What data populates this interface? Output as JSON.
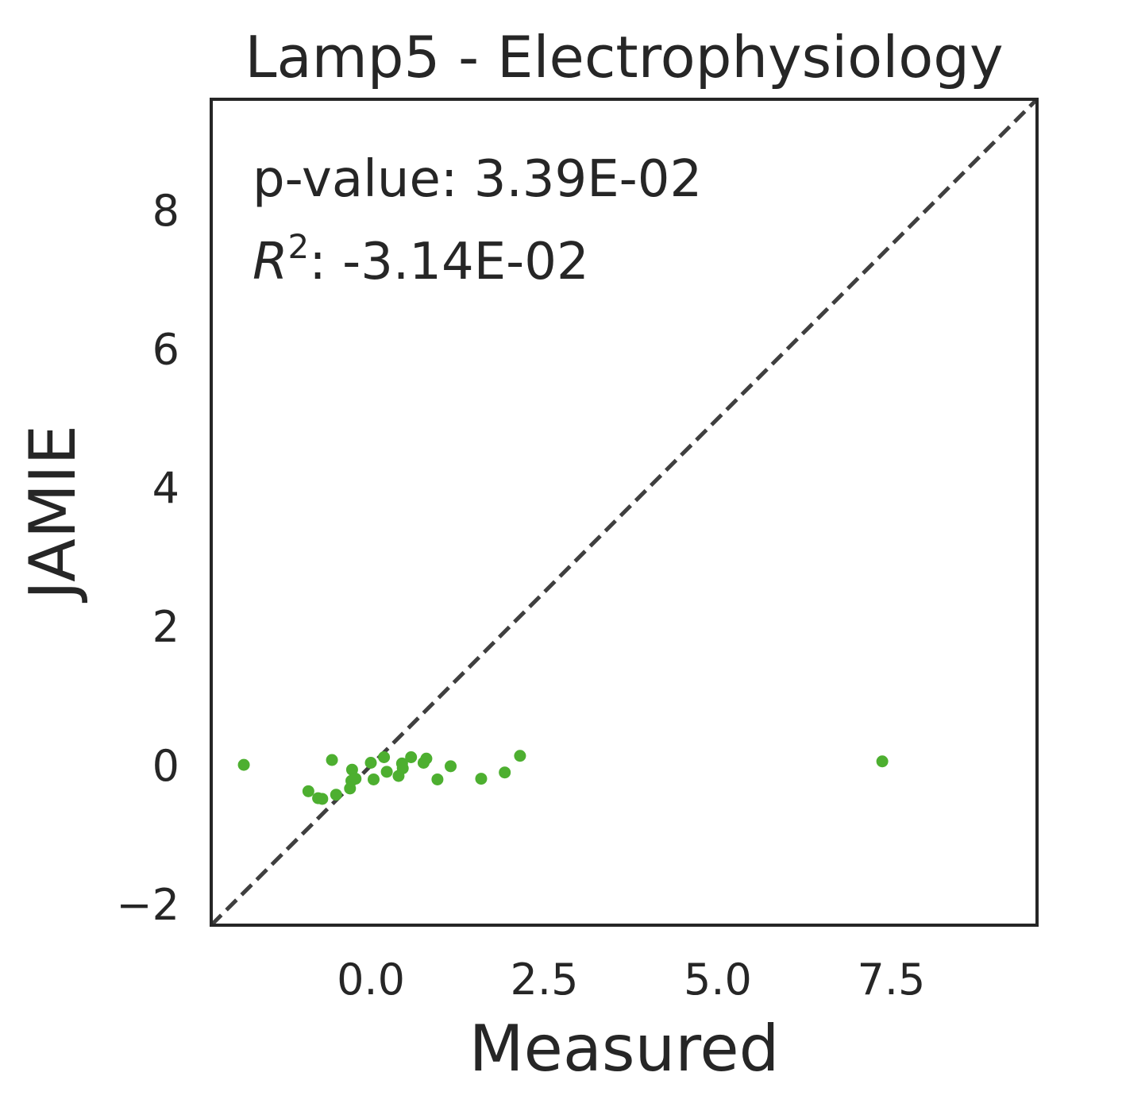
{
  "chart_data": {
    "type": "scatter",
    "title": "Lamp5 - Electrophysiology",
    "xlabel": "Measured",
    "ylabel": "JAMIE",
    "xlim": [
      -2.3,
      9.6
    ],
    "ylim": [
      -2.3,
      9.6
    ],
    "xticks": [
      {
        "value": 0.0,
        "label": "0.0"
      },
      {
        "value": 2.5,
        "label": "2.5"
      },
      {
        "value": 5.0,
        "label": "5.0"
      },
      {
        "value": 7.5,
        "label": "7.5"
      }
    ],
    "yticks": [
      {
        "value": -2,
        "label": "−2"
      },
      {
        "value": 0,
        "label": "0"
      },
      {
        "value": 2,
        "label": "2"
      },
      {
        "value": 4,
        "label": "4"
      },
      {
        "value": 6,
        "label": "6"
      },
      {
        "value": 8,
        "label": "8"
      }
    ],
    "grid": false,
    "reference_line": {
      "style": "dashed",
      "from": [
        -2.3,
        -2.3
      ],
      "to": [
        9.6,
        9.6
      ],
      "color": "#3f3f3f"
    },
    "annotations": {
      "pvalue_label": "p-value: ",
      "pvalue_value": "3.39E-02",
      "r2_symbol": "R",
      "r2_exponent": "2",
      "r2_value": ": -3.14E-02"
    },
    "point_color": "#4daf30",
    "points": [
      {
        "x": -1.83,
        "y": 0.01
      },
      {
        "x": -0.9,
        "y": -0.37
      },
      {
        "x": -0.76,
        "y": -0.47
      },
      {
        "x": -0.7,
        "y": -0.48
      },
      {
        "x": -0.56,
        "y": 0.08
      },
      {
        "x": -0.5,
        "y": -0.42
      },
      {
        "x": -0.3,
        "y": -0.33
      },
      {
        "x": -0.28,
        "y": -0.22
      },
      {
        "x": -0.27,
        "y": -0.06
      },
      {
        "x": -0.22,
        "y": -0.19
      },
      {
        "x": 0.0,
        "y": 0.04
      },
      {
        "x": 0.04,
        "y": -0.2
      },
      {
        "x": 0.19,
        "y": 0.12
      },
      {
        "x": 0.23,
        "y": -0.09
      },
      {
        "x": 0.4,
        "y": -0.15
      },
      {
        "x": 0.45,
        "y": 0.03
      },
      {
        "x": 0.46,
        "y": -0.04
      },
      {
        "x": 0.58,
        "y": 0.12
      },
      {
        "x": 0.76,
        "y": 0.04
      },
      {
        "x": 0.8,
        "y": 0.1
      },
      {
        "x": 0.96,
        "y": -0.2
      },
      {
        "x": 1.15,
        "y": -0.01
      },
      {
        "x": 1.59,
        "y": -0.19
      },
      {
        "x": 1.93,
        "y": -0.1
      },
      {
        "x": 2.15,
        "y": 0.14
      },
      {
        "x": 7.37,
        "y": 0.06
      }
    ]
  }
}
